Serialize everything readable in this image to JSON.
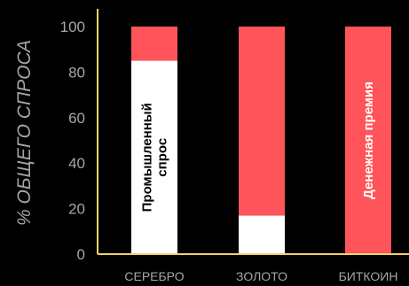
{
  "chart_data": {
    "type": "bar",
    "stacked": true,
    "ylabel": "% ОБЩЕГО СПРОСА",
    "ylim": [
      0,
      100
    ],
    "yticks": [
      0,
      20,
      40,
      60,
      80,
      100
    ],
    "categories": [
      "СЕРЕБРО",
      "ЗОЛОТО",
      "БИТКОИН"
    ],
    "series": [
      {
        "name": "Промышленный спрос",
        "values": [
          85,
          17,
          0
        ],
        "color": "#ffffff"
      },
      {
        "name": "Денежная премия",
        "values": [
          15,
          83,
          100
        ],
        "color": "#ff5459"
      }
    ],
    "annotations": [
      {
        "text_lines": [
          "Промышленный",
          "спрос"
        ],
        "category": "СЕРЕБРО",
        "series": "Промышленный спрос",
        "text_color": "#000000"
      },
      {
        "text_lines": [
          "Денежная премия"
        ],
        "category": "БИТКОИН",
        "series": "Денежная премия",
        "text_color": "#ffffff"
      }
    ],
    "axis_color": "#f0d36b",
    "grid": false
  }
}
